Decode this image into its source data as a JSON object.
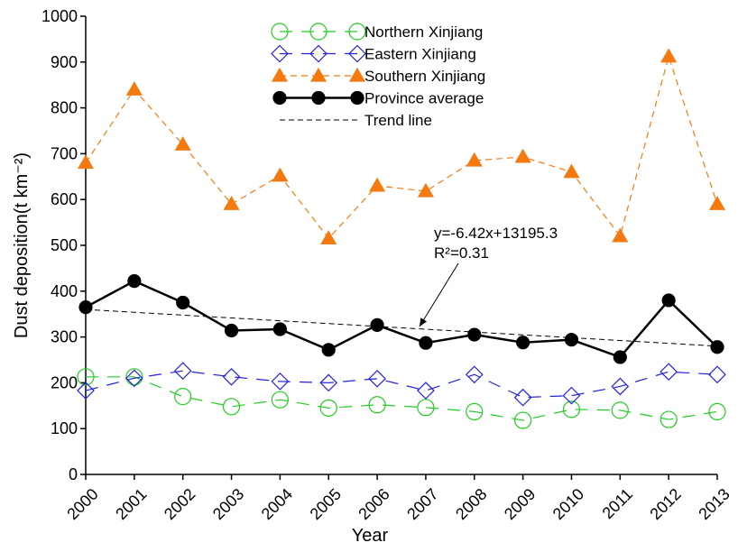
{
  "chart_data": {
    "type": "line",
    "x_label": "Year",
    "y_label": "Dust deposition(t km⁻²)",
    "categories": [
      "2000",
      "2001",
      "2002",
      "2003",
      "2004",
      "2005",
      "2006",
      "2007",
      "2008",
      "2009",
      "2010",
      "2011",
      "2012",
      "2013"
    ],
    "ylim": [
      0,
      1000
    ],
    "yticks": [
      0,
      100,
      200,
      300,
      400,
      500,
      600,
      700,
      800,
      900,
      1000
    ],
    "series": [
      {
        "name": "Northern Xinjiang",
        "color": "#22cc22",
        "marker": "circle",
        "filled": false,
        "dash": "long",
        "values": [
          213,
          213,
          170,
          148,
          163,
          145,
          152,
          146,
          137,
          118,
          142,
          140,
          120,
          137
        ]
      },
      {
        "name": "Eastern Xinjiang",
        "color": "#2222dd",
        "marker": "diamond",
        "filled": false,
        "dash": "long",
        "values": [
          183,
          210,
          226,
          213,
          203,
          200,
          209,
          183,
          218,
          168,
          172,
          192,
          224,
          218
        ]
      },
      {
        "name": "Southern Xinjiang",
        "color": "#f47a10",
        "marker": "triangle",
        "filled": true,
        "dash": "short",
        "values": [
          680,
          840,
          720,
          590,
          652,
          515,
          630,
          618,
          685,
          693,
          660,
          520,
          912,
          590
        ]
      },
      {
        "name": "Province average",
        "color": "#000000",
        "marker": "circle",
        "filled": true,
        "dash": "none",
        "values": [
          365,
          422,
          375,
          314,
          317,
          272,
          326,
          287,
          305,
          288,
          294,
          256,
          380,
          278
        ]
      }
    ],
    "trend": {
      "name": "Trend line",
      "color": "#000000",
      "categories": [
        "2000",
        "2013"
      ],
      "values": [
        360,
        280
      ]
    },
    "annotations": [
      {
        "text": "y=-6.42x+13195.3"
      },
      {
        "text": "R²=0.31"
      }
    ]
  }
}
